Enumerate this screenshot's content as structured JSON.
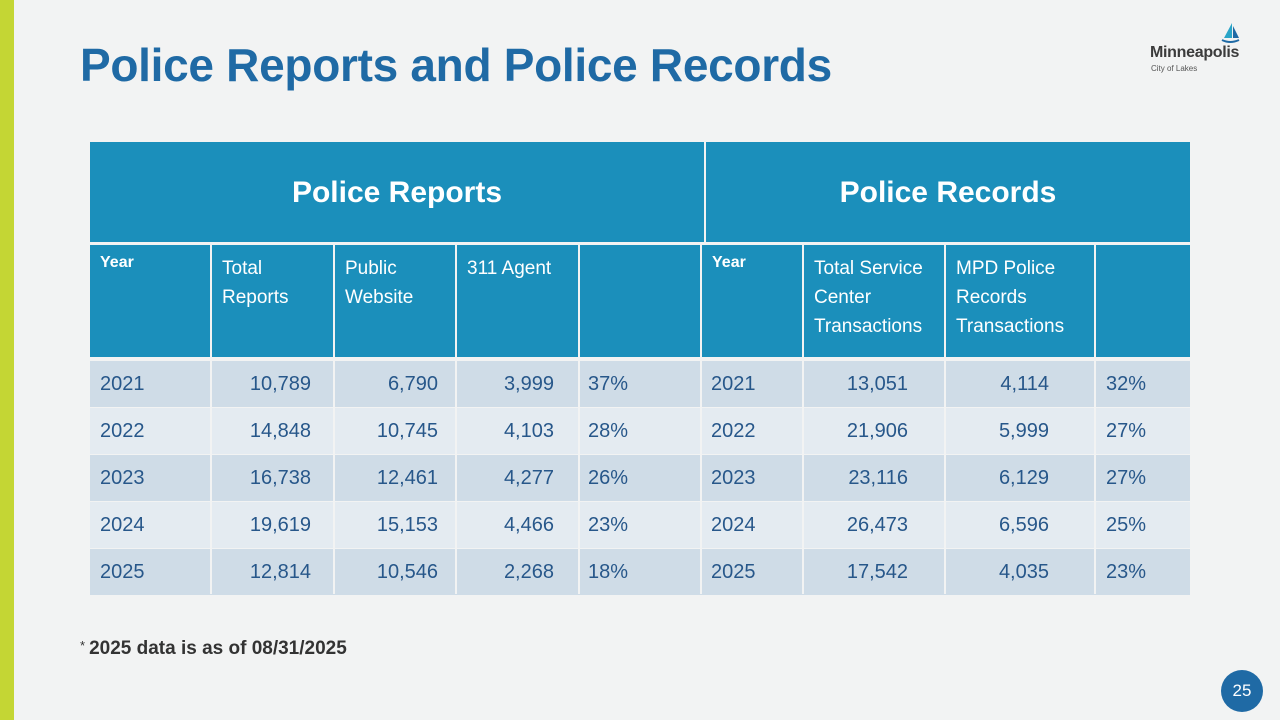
{
  "slide": {
    "title": "Police Reports and Police Records",
    "page_number": "25",
    "footnote_marker": "*",
    "footnote": "2025 data is as of 08/31/2025"
  },
  "logo": {
    "name": "Minneapolis",
    "tagline": "City of Lakes"
  },
  "table": {
    "group_reports": "Police Reports",
    "group_records": "Police Records",
    "headers": {
      "year_reports": "Year",
      "total_reports": "Total Reports",
      "public_website": "Public Website",
      "agent_311": "311 Agent",
      "pct_reports": "",
      "year_records": "Year",
      "total_service": "Total Service Center Transactions",
      "mpd_records": "MPD Police Records Transactions",
      "pct_records": ""
    },
    "rows": [
      {
        "year": "2021",
        "total": "10,789",
        "web": "6,790",
        "agent": "3,999",
        "pct": "37%",
        "year2": "2021",
        "service": "13,051",
        "mpd": "4,114",
        "pct2": "32%"
      },
      {
        "year": "2022",
        "total": "14,848",
        "web": "10,745",
        "agent": "4,103",
        "pct": "28%",
        "year2": "2022",
        "service": "21,906",
        "mpd": "5,999",
        "pct2": "27%"
      },
      {
        "year": "2023",
        "total": "16,738",
        "web": "12,461",
        "agent": "4,277",
        "pct": "26%",
        "year2": "2023",
        "service": "23,116",
        "mpd": "6,129",
        "pct2": "27%"
      },
      {
        "year": "2024",
        "total": "19,619",
        "web": "15,153",
        "agent": "4,466",
        "pct": "23%",
        "year2": "2024",
        "service": "26,473",
        "mpd": "6,596",
        "pct2": "25%"
      },
      {
        "year": "2025",
        "total": "12,814",
        "web": "10,546",
        "agent": "2,268",
        "pct": "18%",
        "year2": "2025",
        "service": "17,542",
        "mpd": "4,035",
        "pct2": "23%"
      }
    ]
  },
  "colors": {
    "header_blue": "#1b8fbb",
    "title_blue": "#1f6aa5",
    "accent_green": "#c4d634",
    "row_odd": "#cfdce7",
    "row_even": "#e4ebf1"
  }
}
